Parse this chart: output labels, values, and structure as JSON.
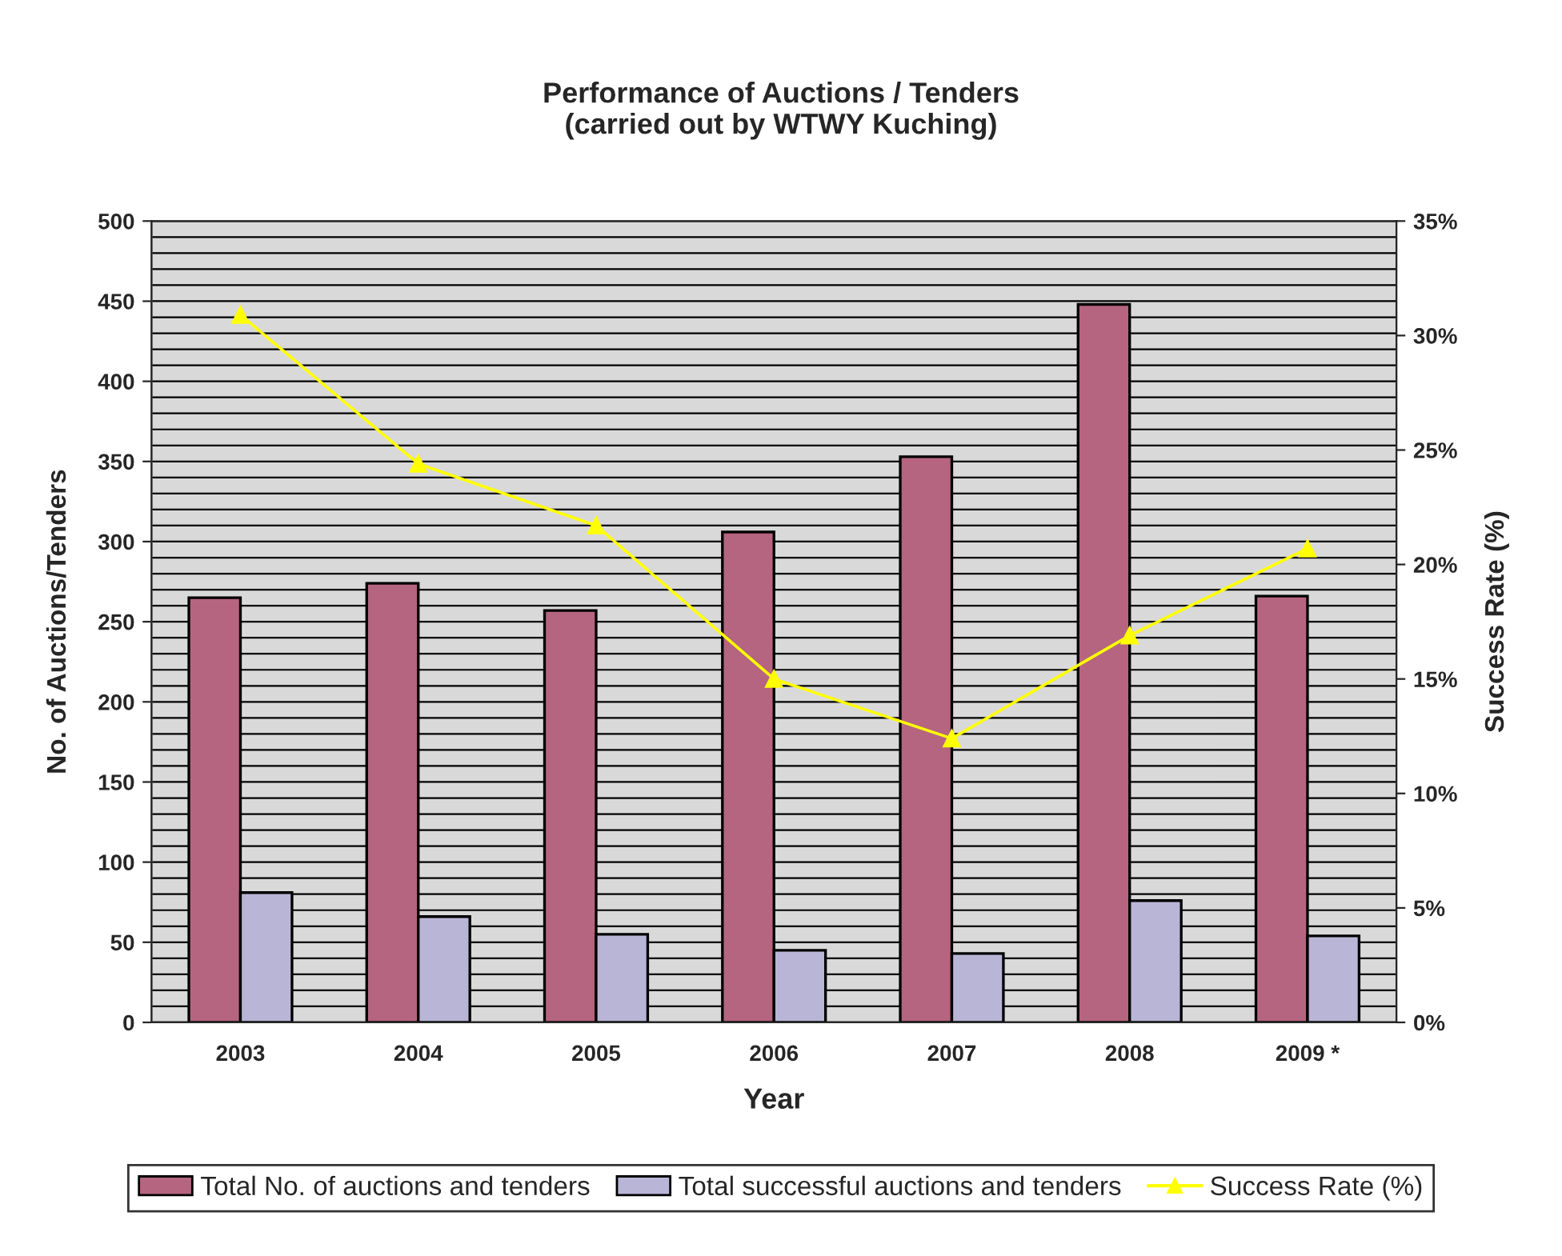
{
  "chart_data": {
    "type": "bar",
    "title": "Performance of Auctions / Tenders\n(carried out by WTWY Kuching)",
    "xlabel": "Year",
    "ylabel": "No. of Auctions/Tenders",
    "y2label": "Success Rate (%)",
    "categories": [
      "2003",
      "2004",
      "2005",
      "2006",
      "2007",
      "2008",
      "2009 *"
    ],
    "series": [
      {
        "name": "Total No. of auctions and tenders",
        "color": "#b5657f",
        "values": [
          265,
          274,
          257,
          306,
          353,
          448,
          266
        ]
      },
      {
        "name": "Total successful auctions and tenders",
        "color": "#b9b5d6",
        "values": [
          81,
          66,
          55,
          45,
          43,
          76,
          54
        ]
      },
      {
        "name": "Success Rate (%)",
        "type": "line",
        "axis": "y2",
        "color": "#ffff00",
        "marker": "triangle",
        "values": [
          30.9,
          24.4,
          21.7,
          15.0,
          12.4,
          16.9,
          20.7
        ]
      }
    ],
    "ylim": [
      0,
      500
    ],
    "yticks": [
      0,
      50,
      100,
      150,
      200,
      250,
      300,
      350,
      400,
      450,
      500
    ],
    "y2lim": [
      0,
      35
    ],
    "y2ticks": [
      {
        "value": 0,
        "label": "0%"
      },
      {
        "value": 5,
        "label": "5%"
      },
      {
        "value": 10,
        "label": "10%"
      },
      {
        "value": 15,
        "label": "15%"
      },
      {
        "value": 20,
        "label": "20%"
      },
      {
        "value": 25,
        "label": "25%"
      },
      {
        "value": 30,
        "label": "30%"
      },
      {
        "value": 35,
        "label": "35%"
      }
    ],
    "grid": "y",
    "legend": "bottom"
  }
}
